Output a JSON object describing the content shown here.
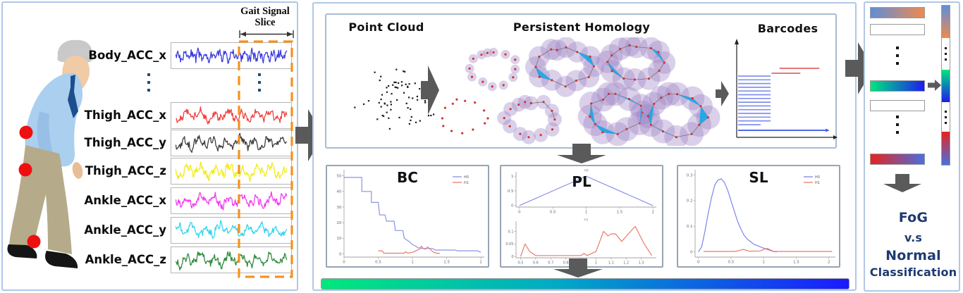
{
  "icons": {
    "right_arrow": "▶",
    "down_arrow": "▼",
    "range_arrow": "↔",
    "vertical_ellipsis": "⋮"
  },
  "left_panel": {
    "slice_label": [
      "Gait Signal",
      "Slice"
    ],
    "slice_box_color": "#f5921e",
    "joint_marker_color": "#ee1010",
    "signals": [
      {
        "label": "Body_ACC_x",
        "color": "#3a3ae0"
      },
      {
        "label": "Thigh_ACC_x",
        "color": "#f04040"
      },
      {
        "label": "Thigh_ACC_y",
        "color": "#3c3c3c"
      },
      {
        "label": "Thigh_ACC_z",
        "color": "#f0ec20"
      },
      {
        "label": "Ankle_ACC_x",
        "color": "#ef3cef"
      },
      {
        "label": "Ankle_ACC_y",
        "color": "#35d4ee"
      },
      {
        "label": "Ankle_ACC_z",
        "color": "#2e8b3c"
      }
    ]
  },
  "middle_panel": {
    "titles": {
      "point_cloud": "Point Cloud",
      "persistent_homology": "Persistent Homology",
      "barcodes": "Barcodes"
    },
    "gradient_bar": {
      "from": "#00e87c",
      "mid": "#00a9c6",
      "to": "#1a1aff"
    }
  },
  "right_panel": {
    "caption": [
      "FoG",
      "v.s",
      "Normal",
      "Classification"
    ],
    "caption_color": "#1e3a70",
    "feature_bars": [
      {
        "name": "gradient-blue-orange",
        "from": "#5f8ed8",
        "to": "#ee8a50"
      },
      {
        "name": "empty-slot"
      },
      {
        "name": "gradient-green-blue",
        "from": "#00e67d",
        "to": "#1c1cf0"
      },
      {
        "name": "empty-slot"
      },
      {
        "name": "gradient-red-blue",
        "from": "#e6231f",
        "to": "#4a6fe0"
      }
    ]
  },
  "chart_data": [
    {
      "type": "line",
      "title": "BC",
      "xlim": [
        0,
        2.05
      ],
      "ylim": [
        -2,
        53
      ],
      "xticks": [
        0,
        0.5,
        1,
        1.5,
        2
      ],
      "yticks": [
        0,
        10,
        20,
        30,
        40,
        50
      ],
      "legend_position": "top-right",
      "series": [
        {
          "name": "H0",
          "color": "#8a93e8",
          "points": [
            [
              0,
              49
            ],
            [
              0.26,
              49
            ],
            [
              0.26,
              40
            ],
            [
              0.4,
              40
            ],
            [
              0.4,
              33
            ],
            [
              0.5,
              33
            ],
            [
              0.52,
              25
            ],
            [
              0.6,
              25
            ],
            [
              0.62,
              21
            ],
            [
              0.73,
              21
            ],
            [
              0.75,
              15
            ],
            [
              0.86,
              15
            ],
            [
              0.88,
              10
            ],
            [
              0.95,
              8
            ],
            [
              1.0,
              6
            ],
            [
              1.05,
              5
            ],
            [
              1.08,
              4
            ],
            [
              1.15,
              3.5
            ],
            [
              1.3,
              3.5
            ],
            [
              1.33,
              2.5
            ],
            [
              1.62,
              2.5
            ],
            [
              1.66,
              2
            ],
            [
              1.95,
              2
            ],
            [
              2.0,
              1
            ]
          ]
        },
        {
          "name": "H1",
          "color": "#e87a6c",
          "points": [
            [
              0.5,
              2
            ],
            [
              0.56,
              2
            ],
            [
              0.58,
              0.5
            ],
            [
              0.88,
              0.5
            ],
            [
              0.9,
              1.5
            ],
            [
              0.93,
              0.5
            ],
            [
              1.0,
              1
            ],
            [
              1.05,
              2
            ],
            [
              1.1,
              3
            ],
            [
              1.13,
              5
            ],
            [
              1.16,
              3.5
            ],
            [
              1.19,
              3
            ],
            [
              1.22,
              4.5
            ],
            [
              1.26,
              3
            ],
            [
              1.31,
              1
            ],
            [
              1.36,
              0.5
            ],
            [
              1.4,
              0.3
            ]
          ]
        }
      ]
    },
    {
      "type": "line-multi",
      "title": "PL",
      "subplots": [
        {
          "subtitle": "H0",
          "xlim": [
            -0.05,
            2.05
          ],
          "ylim": [
            -0.05,
            1.1
          ],
          "xticks": [
            0,
            0.5,
            1,
            1.5,
            2
          ],
          "yticks": [
            0,
            0.5,
            1
          ],
          "series": [
            {
              "name": "H0",
              "color": "#8a93e8",
              "points": [
                [
                  0,
                  0
                ],
                [
                  1,
                  1
                ],
                [
                  2,
                  0
                ]
              ]
            }
          ]
        },
        {
          "subtitle": "H1",
          "xlim": [
            0.47,
            1.4
          ],
          "ylim": [
            -0.005,
            0.135
          ],
          "xticks": [
            0.5,
            0.6,
            0.7,
            0.8,
            0.9,
            1.0,
            1.1,
            1.2,
            1.3
          ],
          "yticks": [
            0,
            0.05,
            0.1
          ],
          "series": [
            {
              "name": "H1",
              "color": "#e87a6c",
              "points": [
                [
                  0.5,
                  0
                ],
                [
                  0.53,
                  0.05
                ],
                [
                  0.56,
                  0.02
                ],
                [
                  0.6,
                  0.004
                ],
                [
                  0.9,
                  0.004
                ],
                [
                  0.92,
                  0.012
                ],
                [
                  0.94,
                  0.004
                ],
                [
                  1.0,
                  0.02
                ],
                [
                  1.05,
                  0.1
                ],
                [
                  1.08,
                  0.082
                ],
                [
                  1.1,
                  0.09
                ],
                [
                  1.13,
                  0.09
                ],
                [
                  1.17,
                  0.06
                ],
                [
                  1.2,
                  0.08
                ],
                [
                  1.26,
                  0.12
                ],
                [
                  1.32,
                  0.05
                ],
                [
                  1.37,
                  0.004
                ]
              ]
            }
          ]
        }
      ]
    },
    {
      "type": "line",
      "title": "SL",
      "xlim": [
        -0.05,
        2.1
      ],
      "ylim": [
        -0.02,
        0.315
      ],
      "xticks": [
        0,
        0.5,
        1,
        1.5,
        2
      ],
      "yticks": [
        0,
        0.1,
        0.2,
        0.3
      ],
      "legend_position": "top-right",
      "series": [
        {
          "name": "H0",
          "color": "#7c86e8",
          "points": [
            [
              0,
              0
            ],
            [
              0.05,
              0.02
            ],
            [
              0.1,
              0.08
            ],
            [
              0.15,
              0.15
            ],
            [
              0.2,
              0.21
            ],
            [
              0.25,
              0.26
            ],
            [
              0.3,
              0.28
            ],
            [
              0.35,
              0.285
            ],
            [
              0.4,
              0.27
            ],
            [
              0.45,
              0.24
            ],
            [
              0.5,
              0.2
            ],
            [
              0.55,
              0.16
            ],
            [
              0.6,
              0.12
            ],
            [
              0.65,
              0.09
            ],
            [
              0.7,
              0.065
            ],
            [
              0.75,
              0.05
            ],
            [
              0.8,
              0.04
            ],
            [
              0.85,
              0.03
            ],
            [
              0.9,
              0.025
            ],
            [
              0.95,
              0.02
            ],
            [
              1.0,
              0.015
            ],
            [
              1.05,
              0.01
            ],
            [
              1.1,
              0.006
            ],
            [
              1.15,
              0.002
            ],
            [
              1.2,
              0
            ]
          ]
        },
        {
          "name": "H1",
          "color": "#e87a6c",
          "points": [
            [
              0.08,
              0.002
            ],
            [
              0.55,
              0.002
            ],
            [
              0.62,
              0.005
            ],
            [
              0.68,
              0.01
            ],
            [
              0.72,
              0.008
            ],
            [
              0.78,
              0.003
            ],
            [
              0.95,
              0.004
            ],
            [
              1.02,
              0.012
            ],
            [
              1.06,
              0.014
            ],
            [
              1.1,
              0.008
            ],
            [
              1.16,
              0.002
            ],
            [
              2.05,
              0.002
            ]
          ]
        }
      ]
    },
    {
      "type": "barcode",
      "h0_color": "#8290ee",
      "h1_color": "#e06464",
      "h0_bars": [
        [
          0,
          0.36
        ],
        [
          0,
          0.36
        ],
        [
          0,
          0.36
        ],
        [
          0,
          0.36
        ],
        [
          0,
          0.36
        ],
        [
          0,
          0.36
        ],
        [
          0,
          0.36
        ],
        [
          0,
          0.36
        ],
        [
          0,
          0.36
        ],
        [
          0,
          0.36
        ],
        [
          0,
          0.36
        ],
        [
          0,
          0.36
        ],
        [
          0,
          0.36
        ],
        [
          0,
          0.25
        ]
      ],
      "h0_infinite": [
        0,
        0.98
      ],
      "h1_bars": [
        [
          0.46,
          0.9
        ],
        [
          0.37,
          0.69
        ]
      ]
    }
  ]
}
